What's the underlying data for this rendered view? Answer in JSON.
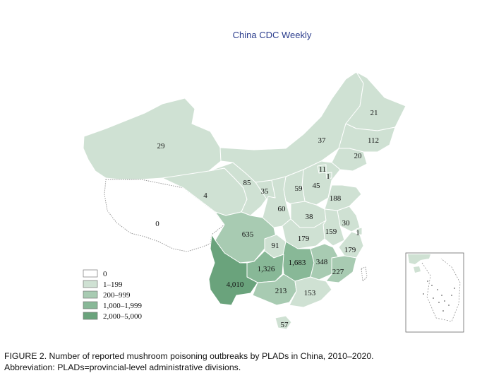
{
  "header": {
    "journal": "China CDC Weekly"
  },
  "colors": {
    "c0": "#ffffff",
    "c1": "#cfe1d3",
    "c2": "#a8cbb2",
    "c3": "#88b897",
    "c4": "#6aa37c",
    "border": "#ffffff",
    "outline": "#999999"
  },
  "legend": {
    "items": [
      {
        "label": "0",
        "class": "c0"
      },
      {
        "label": "1–199",
        "class": "c1"
      },
      {
        "label": "200–999",
        "class": "c2"
      },
      {
        "label": "1,000–1,999",
        "class": "c3"
      },
      {
        "label": "2,000–5,000",
        "class": "c4"
      }
    ]
  },
  "regions": [
    {
      "id": "xinjiang",
      "value": "29",
      "class": "c1"
    },
    {
      "id": "tibet",
      "value": "0",
      "class": "c0"
    },
    {
      "id": "qinghai",
      "value": "4",
      "class": "c1"
    },
    {
      "id": "gansu",
      "value": "85",
      "class": "c1"
    },
    {
      "id": "ningxia",
      "value": "35",
      "class": "c1"
    },
    {
      "id": "inner-mongolia",
      "value": "37",
      "class": "c1"
    },
    {
      "id": "heilongjiang",
      "value": "21",
      "class": "c1"
    },
    {
      "id": "jilin",
      "value": "112",
      "class": "c1"
    },
    {
      "id": "liaoning",
      "value": "20",
      "class": "c1"
    },
    {
      "id": "beijing",
      "value": "11",
      "class": "c1"
    },
    {
      "id": "tianjin",
      "value": "1",
      "class": "c1"
    },
    {
      "id": "hebei",
      "value": "45",
      "class": "c1"
    },
    {
      "id": "shanxi",
      "value": "59",
      "class": "c1"
    },
    {
      "id": "shandong",
      "value": "188",
      "class": "c1"
    },
    {
      "id": "shaanxi",
      "value": "60",
      "class": "c1"
    },
    {
      "id": "henan",
      "value": "38",
      "class": "c1"
    },
    {
      "id": "jiangsu",
      "value": "30",
      "class": "c1"
    },
    {
      "id": "shanghai",
      "value": "1",
      "class": "c1"
    },
    {
      "id": "anhui",
      "value": "159",
      "class": "c1"
    },
    {
      "id": "hubei",
      "value": "179",
      "class": "c1"
    },
    {
      "id": "zhejiang",
      "value": "179",
      "class": "c1"
    },
    {
      "id": "sichuan",
      "value": "635",
      "class": "c2"
    },
    {
      "id": "chongqing",
      "value": "91",
      "class": "c1"
    },
    {
      "id": "hunan",
      "value": "1,683",
      "class": "c3"
    },
    {
      "id": "jiangxi",
      "value": "348",
      "class": "c2"
    },
    {
      "id": "fujian",
      "value": "227",
      "class": "c2"
    },
    {
      "id": "guizhou",
      "value": "1,326",
      "class": "c3"
    },
    {
      "id": "yunnan",
      "value": "4,010",
      "class": "c4"
    },
    {
      "id": "guangxi",
      "value": "213",
      "class": "c2"
    },
    {
      "id": "guangdong",
      "value": "153",
      "class": "c1"
    },
    {
      "id": "hainan",
      "value": "57",
      "class": "c1"
    }
  ],
  "caption": {
    "line1": "FIGURE 2. Number of reported mushroom poisoning outbreaks by PLADs in China, 2010–2020.",
    "line2": "Abbreviation: PLADs=provincial-level administrative divisions."
  }
}
